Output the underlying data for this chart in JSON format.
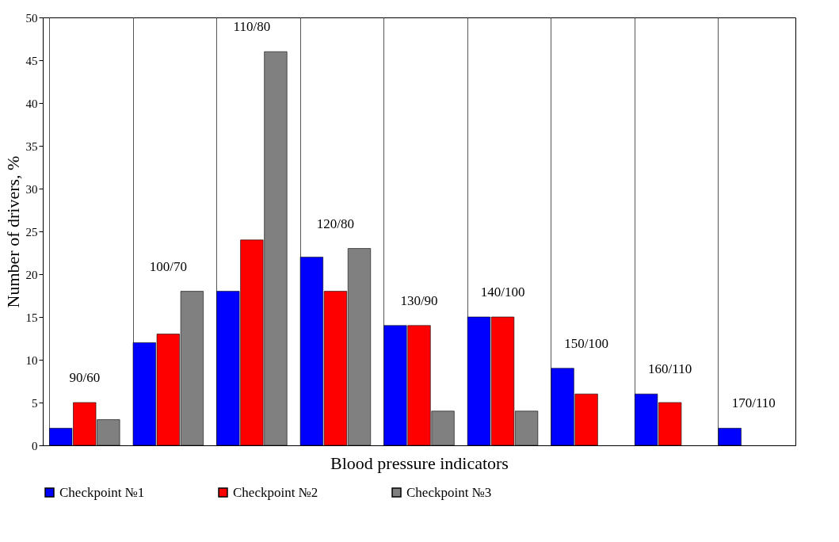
{
  "chart_data": {
    "type": "bar",
    "xlabel": "Blood pressure indicators",
    "ylabel": "Number of drivers, %",
    "categories": [
      "90/60",
      "100/70",
      "110/80",
      "120/80",
      "130/90",
      "140/100",
      "150/100",
      "160/110",
      "170/110"
    ],
    "series": [
      {
        "name": "Checkpoint №1",
        "color": "#0000ff",
        "values": [
          2,
          12,
          18,
          22,
          14,
          15,
          9,
          6,
          2
        ]
      },
      {
        "name": "Checkpoint №2",
        "color": "#ff0000",
        "values": [
          5,
          13,
          24,
          18,
          14,
          15,
          6,
          5,
          null
        ]
      },
      {
        "name": "Checkpoint №3",
        "color": "#808080",
        "values": [
          3,
          18,
          46,
          23,
          4,
          4,
          null,
          null,
          null
        ]
      }
    ],
    "ylim": [
      0,
      50
    ],
    "yticks": [
      0,
      5,
      10,
      15,
      20,
      25,
      30,
      35,
      40,
      45,
      50
    ],
    "grid": "x",
    "legend": "bottom",
    "tick_labels": "y"
  }
}
